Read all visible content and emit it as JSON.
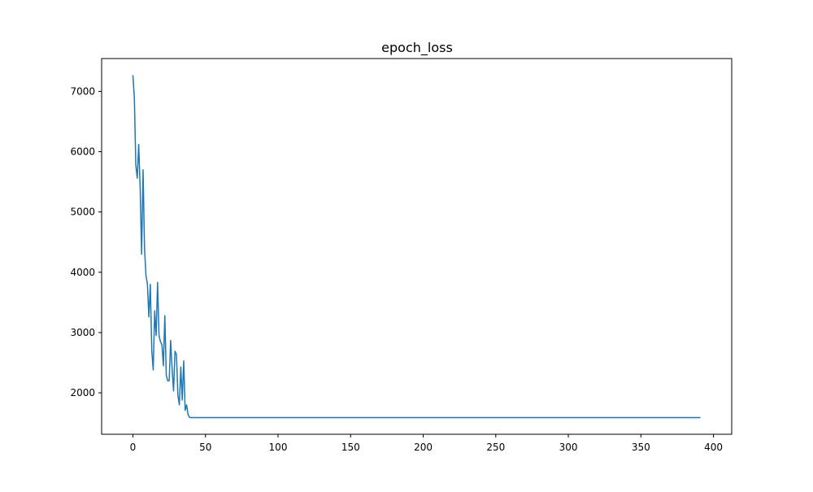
{
  "chart_data": {
    "type": "line",
    "title": "epoch_loss",
    "xlabel": "",
    "ylabel": "",
    "xlim": [
      -21.55,
      412.55
    ],
    "ylim": [
      1313,
      7545
    ],
    "x_ticks": [
      0,
      50,
      100,
      150,
      200,
      250,
      300,
      350,
      400
    ],
    "y_ticks": [
      2000,
      3000,
      4000,
      5000,
      6000,
      7000
    ],
    "x_tick_labels": [
      "0",
      "50",
      "100",
      "150",
      "200",
      "250",
      "300",
      "350",
      "400"
    ],
    "y_tick_labels": [
      "2000",
      "3000",
      "4000",
      "5000",
      "6000",
      "7000"
    ],
    "grid": false,
    "legend": "none",
    "series": [
      {
        "color": "#1f77b4",
        "x": [
          0,
          1,
          2,
          3,
          4,
          5,
          6,
          7,
          8,
          9,
          10,
          11,
          12,
          13,
          14,
          15,
          16,
          17,
          18,
          19,
          20,
          21,
          22,
          23,
          24,
          25,
          26,
          27,
          28,
          29,
          30,
          31,
          32,
          33,
          34,
          35,
          36,
          37,
          38,
          39,
          40,
          41,
          42,
          43,
          45,
          50,
          391
        ],
        "y": [
          7270,
          6900,
          5780,
          5560,
          6120,
          5400,
          4300,
          5700,
          4400,
          3950,
          3800,
          3260,
          3800,
          2700,
          2380,
          3360,
          2950,
          3830,
          2950,
          2850,
          2800,
          2450,
          3280,
          2290,
          2200,
          2200,
          2870,
          2400,
          2030,
          2690,
          2640,
          1960,
          1800,
          2430,
          1880,
          2530,
          1710,
          1800,
          1640,
          1595,
          1590,
          1590,
          1590,
          1590,
          1590,
          1590,
          1590
        ]
      }
    ]
  }
}
